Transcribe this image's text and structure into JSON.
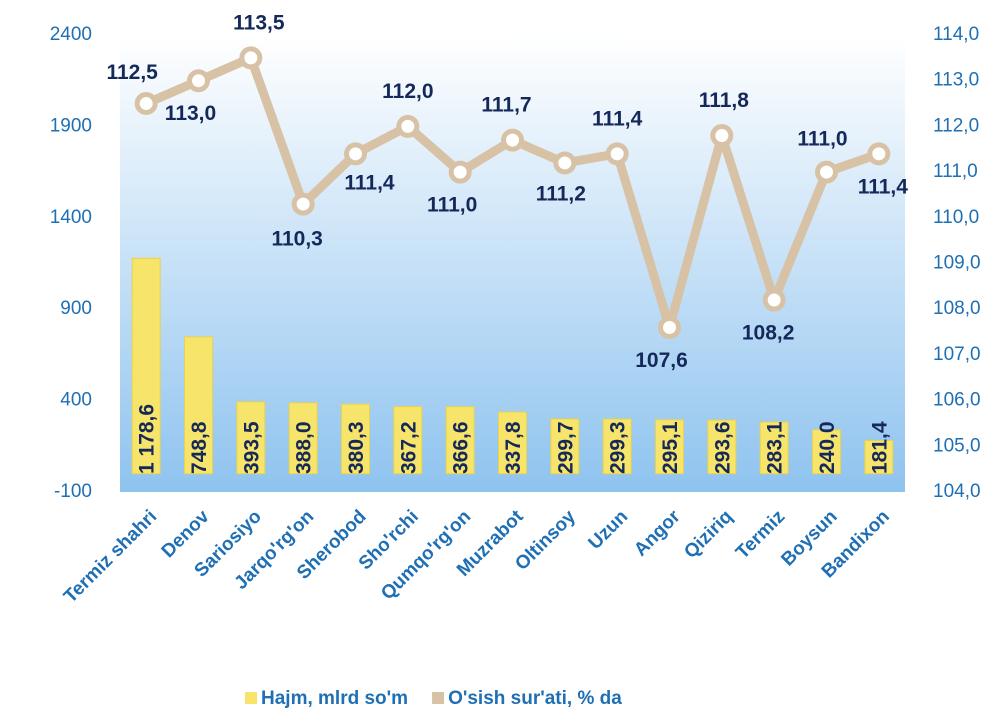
{
  "chart_data": {
    "type": "bar_line",
    "categories": [
      "Termiz shahri",
      "Denov",
      "Sariosiyo",
      "Jarqo'rg'on",
      "Sherobod",
      "Sho'rchi",
      "Qumqo'rg'on",
      "Muzrabot",
      "Oltinsoy",
      "Uzun",
      "Angor",
      "Qiziriq",
      "Termiz",
      "Boysun",
      "Bandixon"
    ],
    "series": [
      {
        "name": "Hajm, mlrd so'm",
        "color": "#f7e46a",
        "type": "bar",
        "values": [
          1178.6,
          748.8,
          393.5,
          388.0,
          380.3,
          367.2,
          366.6,
          337.8,
          299.7,
          299.3,
          295.1,
          293.6,
          283.1,
          240.0,
          181.4
        ],
        "value_labels": [
          "1 178,6",
          "748,8",
          "393,5",
          "388,0",
          "380,3",
          "367,2",
          "366,6",
          "337,8",
          "299,7",
          "299,3",
          "295,1",
          "293,6",
          "283,1",
          "240,0",
          "181,4"
        ]
      },
      {
        "name": "O'sish sur'ati, % da",
        "color": "#d8c2a6",
        "type": "line",
        "axis": "y2",
        "values": [
          112.5,
          113.0,
          113.5,
          110.3,
          111.4,
          112.0,
          111.0,
          111.7,
          111.2,
          111.4,
          107.6,
          111.8,
          108.2,
          111.0,
          111.4
        ],
        "value_labels": [
          "112,5",
          "113,0",
          "113,5",
          "110,3",
          "111,4",
          "112,0",
          "111,0",
          "111,7",
          "111,2",
          "111,4",
          "107,6",
          "111,8",
          "108,2",
          "111,0",
          "111,4"
        ]
      }
    ],
    "ylim": [
      -100,
      2400
    ],
    "yticks": [
      -100,
      400,
      900,
      1400,
      1900,
      2400
    ],
    "y2lim": [
      104,
      114
    ],
    "y2ticks": [
      {
        "value": 104,
        "label": "104,0"
      },
      {
        "value": 105,
        "label": "105,0"
      },
      {
        "value": 106,
        "label": "106,0"
      },
      {
        "value": 107,
        "label": "107,0"
      },
      {
        "value": 108,
        "label": "108,0"
      },
      {
        "value": 109,
        "label": "109,0"
      },
      {
        "value": 110,
        "label": "110,0"
      },
      {
        "value": 111,
        "label": "111,0"
      },
      {
        "value": 112,
        "label": "112,0"
      },
      {
        "value": 113,
        "label": "113,0"
      },
      {
        "value": 114,
        "label": "114,0"
      }
    ]
  }
}
